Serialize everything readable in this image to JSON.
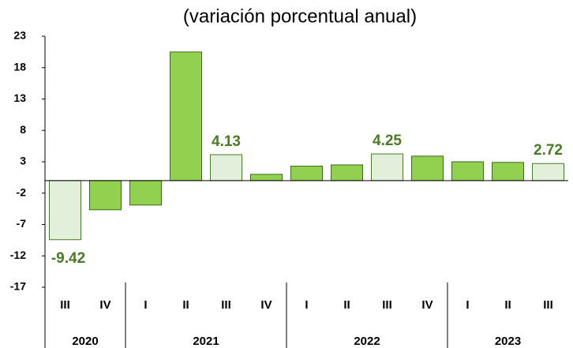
{
  "chart_data": {
    "type": "bar",
    "subtitle": "(variación porcentual anual)",
    "categories": [
      "III",
      "IV",
      "I",
      "II",
      "III",
      "IV",
      "I",
      "II",
      "III",
      "IV",
      "I",
      "II",
      "III"
    ],
    "years": [
      "2020",
      "2020",
      "2021",
      "2021",
      "2021",
      "2021",
      "2022",
      "2022",
      "2022",
      "2022",
      "2023",
      "2023",
      "2023"
    ],
    "values": [
      -9.42,
      -4.65,
      -3.9,
      20.5,
      4.13,
      1.0,
      2.3,
      2.5,
      4.25,
      3.9,
      3.0,
      2.9,
      2.72
    ],
    "value_labels": [
      "-9.42",
      null,
      null,
      null,
      "4.13",
      null,
      null,
      null,
      "4.25",
      null,
      null,
      null,
      "2.72"
    ],
    "colors": [
      "#e2efda",
      "#92d050",
      "#92d050",
      "#92d050",
      "#e2efda",
      "#92d050",
      "#92d050",
      "#92d050",
      "#e2efda",
      "#92d050",
      "#92d050",
      "#92d050",
      "#e2efda"
    ],
    "ylim": [
      -17,
      23
    ],
    "yticks": [
      23,
      18,
      13,
      8,
      3,
      -2,
      -7,
      -12,
      -17
    ]
  }
}
